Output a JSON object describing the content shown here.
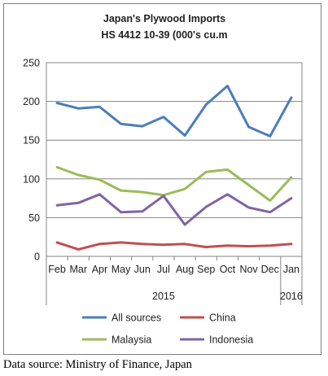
{
  "chart_data": {
    "type": "line",
    "title_lines": [
      "Japan's Plywood Imports",
      "HS 4412 10-39  (000's cu.m"
    ],
    "categories": [
      "Feb",
      "Mar",
      "Apr",
      "May",
      "Jun",
      "Jul",
      "Aug",
      "Sep",
      "Oct",
      "Nov",
      "Dec",
      "Jan"
    ],
    "year_groups": [
      {
        "label": "2015",
        "start": 0,
        "end": 10
      },
      {
        "label": "2016",
        "start": 11,
        "end": 11
      }
    ],
    "ylim": [
      0,
      250
    ],
    "yticks": [
      0,
      50,
      100,
      150,
      200,
      250
    ],
    "grid": true,
    "legend_position": "bottom",
    "series": [
      {
        "name": "All sources",
        "color": "#4a7ebb",
        "values": [
          198,
          191,
          193,
          171,
          168,
          180,
          156,
          196,
          220,
          167,
          155,
          205
        ]
      },
      {
        "name": "China",
        "color": "#c0504d",
        "values": [
          18,
          9,
          16,
          18,
          16,
          15,
          16,
          12,
          14,
          13,
          14,
          16
        ]
      },
      {
        "name": "Malaysia",
        "color": "#9bbb59",
        "values": [
          115,
          105,
          99,
          85,
          83,
          79,
          87,
          109,
          112,
          92,
          72,
          102
        ]
      },
      {
        "name": "Indonesia",
        "color": "#8064a2",
        "values": [
          66,
          69,
          80,
          57,
          58,
          78,
          41,
          64,
          80,
          63,
          57,
          75
        ]
      }
    ]
  },
  "source_note": "Data source: Ministry of Finance, Japan"
}
